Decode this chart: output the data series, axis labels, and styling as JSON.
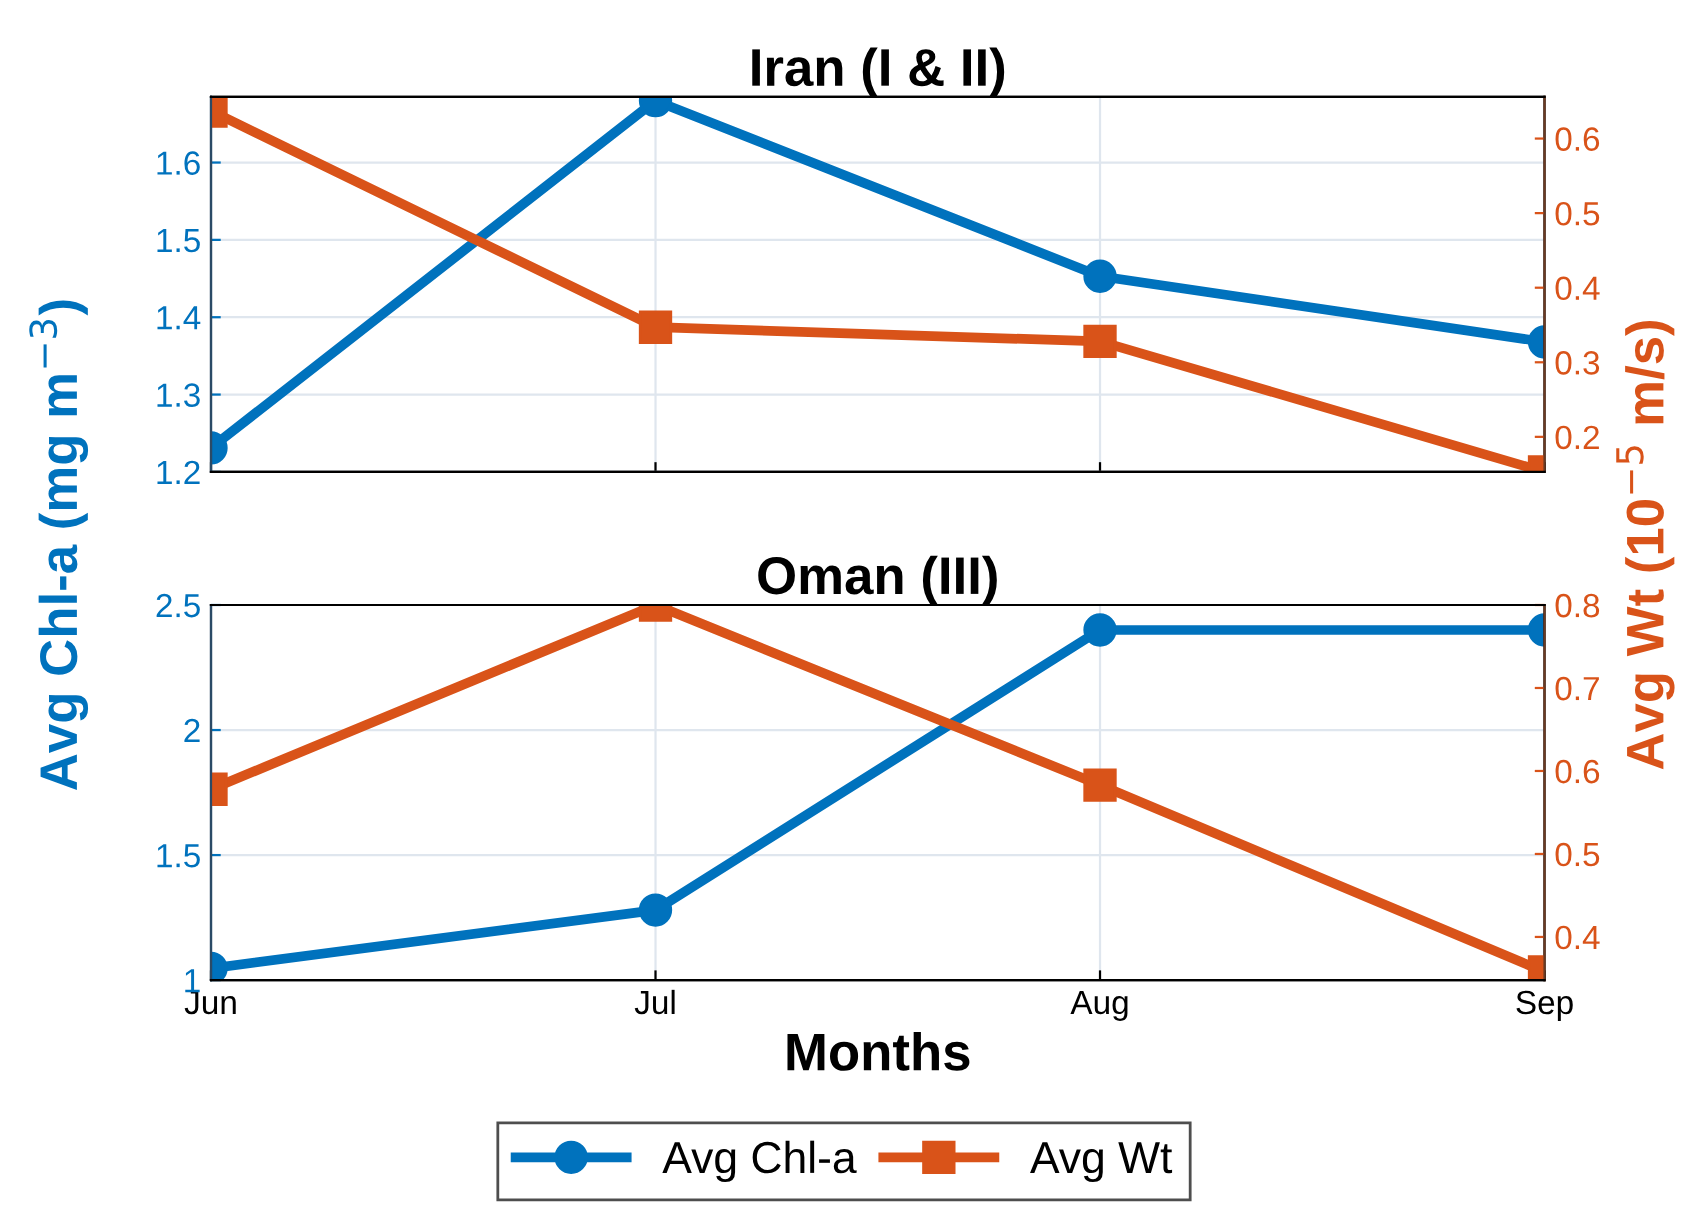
{
  "chart_data": [
    {
      "type": "line",
      "title": "Iran (I & II)",
      "ylabel": "Avg Chl-a (mg m$^{−3}$)",
      "y2label": "Avg Wt (10$^{−5}$ m/s)",
      "categories": [
        null,
        null,
        null,
        null
      ],
      "series": [
        {
          "color": "#0072bd",
          "marker": "circle",
          "values": [
            1.231,
            1.68,
            1.453,
            1.368
          ]
        },
        {
          "color": "#d95319",
          "marker": "square",
          "axis": "y2",
          "values": [
            0.637,
            0.347,
            0.328,
            0.153
          ]
        }
      ],
      "ylim": [
        1.2,
        1.685
      ],
      "yticks": [
        1.2,
        1.3,
        1.4,
        1.5,
        1.6
      ],
      "y2lim": [
        0.153,
        0.656
      ],
      "y2ticks": [
        0.2,
        0.3,
        0.4,
        0.5,
        0.6
      ],
      "grid": true,
      "tick_labels": "y",
      "line_style": "solid"
    },
    {
      "type": "line",
      "title": "Oman (III)",
      "xlabel": "Months",
      "categories": [
        "Jun",
        "Jul",
        "Aug",
        "Sep"
      ],
      "series": [
        {
          "name": "Avg Chl-a",
          "color": "#0072bd",
          "marker": "circle",
          "values": [
            1.047,
            1.28,
            2.4,
            2.4
          ]
        },
        {
          "name": "Avg Wt",
          "color": "#d95319",
          "marker": "square",
          "axis": "y2",
          "values": [
            0.578,
            0.8,
            0.583,
            0.358
          ]
        }
      ],
      "ylim": [
        1,
        2.5
      ],
      "yticks": [
        1,
        1.5,
        2,
        2.5
      ],
      "y2lim": [
        0.348,
        0.8
      ],
      "y2ticks": [
        0.4,
        0.5,
        0.6,
        0.7,
        0.8
      ],
      "grid": true,
      "legend": "bottom",
      "line_style": "solid"
    }
  ]
}
